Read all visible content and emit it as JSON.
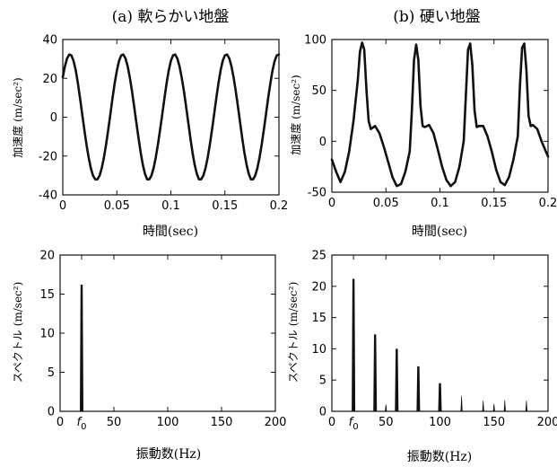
{
  "chart_data": [
    {
      "type": "line",
      "title": "(a) 軟らかい地盤",
      "xlabel": "時間(sec)",
      "ylabel": "加速度 (m/sec²)",
      "xlim": [
        0,
        0.2
      ],
      "ylim": [
        -40,
        40
      ],
      "xticks": [
        "0",
        "0.05",
        "0.1",
        "0.15",
        "0.2"
      ],
      "yticks": [
        "-40",
        "-20",
        "0",
        "20",
        "40"
      ],
      "series": [
        {
          "x": [
            0.0,
            0.002,
            0.004,
            0.006,
            0.008,
            0.01,
            0.012,
            0.014,
            0.016,
            0.018,
            0.02,
            0.022,
            0.024,
            0.026,
            0.028,
            0.03,
            0.032,
            0.034,
            0.036,
            0.038,
            0.04,
            0.042,
            0.044,
            0.046,
            0.048,
            0.05,
            0.052,
            0.054,
            0.056,
            0.058,
            0.06,
            0.062,
            0.064,
            0.066,
            0.068,
            0.07,
            0.072,
            0.074,
            0.076,
            0.078,
            0.08,
            0.082,
            0.084,
            0.086,
            0.088,
            0.09,
            0.092,
            0.094,
            0.096,
            0.098,
            0.1,
            0.102,
            0.104,
            0.106,
            0.108,
            0.11,
            0.112,
            0.114,
            0.116,
            0.118,
            0.12,
            0.122,
            0.124,
            0.126,
            0.128,
            0.13,
            0.132,
            0.134,
            0.136,
            0.138,
            0.14,
            0.142,
            0.144,
            0.146,
            0.148,
            0.15,
            0.152,
            0.154,
            0.156,
            0.158,
            0.16,
            0.162,
            0.164,
            0.166,
            0.168,
            0.17,
            0.172,
            0.174,
            0.176,
            0.178,
            0.18,
            0.182,
            0.184,
            0.186,
            0.188,
            0.19,
            0.192,
            0.194,
            0.196,
            0.198,
            0.2
          ],
          "y": [
            20.6,
            26.3,
            30.3,
            32.3,
            31.8,
            29.0,
            24.0,
            17.3,
            9.6,
            1.4,
            -6.7,
            -14.3,
            -20.9,
            -26.3,
            -30.1,
            -32.0,
            -32.0,
            -30.1,
            -26.3,
            -20.9,
            -14.3,
            -6.7,
            1.4,
            9.6,
            17.3,
            24.0,
            29.0,
            31.8,
            32.3,
            30.3,
            26.3,
            20.6,
            13.6,
            5.8,
            -2.4,
            -10.6,
            -18.1,
            -24.4,
            -29.1,
            -32.0,
            -32.0,
            -30.1,
            -26.3,
            -20.9,
            -14.3,
            -6.7,
            1.4,
            9.6,
            17.3,
            24.0,
            29.0,
            31.8,
            32.3,
            30.3,
            26.3,
            20.6,
            13.6,
            5.8,
            -2.4,
            -10.6,
            -18.1,
            -24.4,
            -29.1,
            -32.0,
            -32.0,
            -30.1,
            -26.3,
            -20.9,
            -14.3,
            -6.7,
            1.4,
            9.6,
            17.3,
            24.0,
            29.0,
            31.8,
            32.3,
            30.3,
            26.3,
            20.6,
            13.6,
            5.8,
            -2.4,
            -10.6,
            -18.1,
            -24.4,
            -29.1,
            -32.0,
            -32.0,
            -30.1,
            -26.3,
            -20.9,
            -14.3,
            -6.7,
            1.4,
            9.6,
            17.3,
            24.0,
            29.0,
            31.8,
            32.3
          ]
        }
      ]
    },
    {
      "type": "line",
      "title": "(b) 硬い地盤",
      "xlabel": "時間(sec)",
      "ylabel": "加速度 (m/sec²)",
      "xlim": [
        0,
        0.2
      ],
      "ylim": [
        -50,
        100
      ],
      "xticks": [
        "0",
        "0.05",
        "0.1",
        "0.15",
        "0.2"
      ],
      "yticks": [
        "-50",
        "0",
        "50",
        "100"
      ],
      "series": [
        {
          "x": [
            0.0,
            0.004,
            0.008,
            0.012,
            0.016,
            0.02,
            0.024,
            0.026,
            0.028,
            0.03,
            0.032,
            0.034,
            0.036,
            0.04,
            0.044,
            0.048,
            0.052,
            0.056,
            0.06,
            0.064,
            0.068,
            0.072,
            0.074,
            0.076,
            0.078,
            0.08,
            0.082,
            0.084,
            0.086,
            0.09,
            0.094,
            0.098,
            0.102,
            0.106,
            0.11,
            0.114,
            0.118,
            0.122,
            0.124,
            0.126,
            0.128,
            0.13,
            0.132,
            0.134,
            0.136,
            0.14,
            0.144,
            0.148,
            0.152,
            0.156,
            0.16,
            0.164,
            0.168,
            0.172,
            0.174,
            0.176,
            0.178,
            0.18,
            0.182,
            0.184,
            0.186,
            0.19,
            0.194,
            0.198,
            0.2
          ],
          "y": [
            -18,
            -30,
            -40,
            -30,
            -10,
            20,
            60,
            88,
            97,
            90,
            50,
            20,
            12,
            15,
            8,
            -5,
            -20,
            -35,
            -44,
            -42,
            -30,
            -10,
            30,
            80,
            95,
            80,
            35,
            15,
            14,
            16,
            8,
            -8,
            -25,
            -38,
            -44,
            -40,
            -25,
            0,
            45,
            90,
            96,
            75,
            30,
            14,
            15,
            15,
            5,
            -10,
            -28,
            -40,
            -43,
            -35,
            -18,
            5,
            55,
            92,
            96,
            70,
            25,
            15,
            16,
            12,
            0,
            -10,
            -15
          ]
        }
      ]
    },
    {
      "type": "bar",
      "xlabel": "振動数(Hz)",
      "ylabel": "スペクトル (m/sec²)",
      "xlim": [
        0,
        200
      ],
      "ylim": [
        0,
        20
      ],
      "xticks": [
        "0",
        "f0",
        "50",
        "100",
        "150",
        "200"
      ],
      "yticks": [
        "0",
        "5",
        "10",
        "15",
        "20"
      ],
      "x": [
        20
      ],
      "values": [
        16.2
      ]
    },
    {
      "type": "bar",
      "xlabel": "振動数(Hz)",
      "ylabel": "スペクトル (m/sec²)",
      "xlim": [
        0,
        200
      ],
      "ylim": [
        0,
        25
      ],
      "xticks": [
        "0",
        "f0",
        "50",
        "100",
        "150",
        "200"
      ],
      "yticks": [
        "0",
        "5",
        "10",
        "15",
        "20",
        "25"
      ],
      "x": [
        20,
        40,
        50,
        60,
        80,
        100,
        120,
        140,
        150,
        160,
        180
      ],
      "values": [
        21.2,
        12.3,
        1.1,
        10.0,
        7.2,
        4.5,
        2.5,
        1.7,
        1.2,
        1.8,
        1.7
      ]
    }
  ]
}
